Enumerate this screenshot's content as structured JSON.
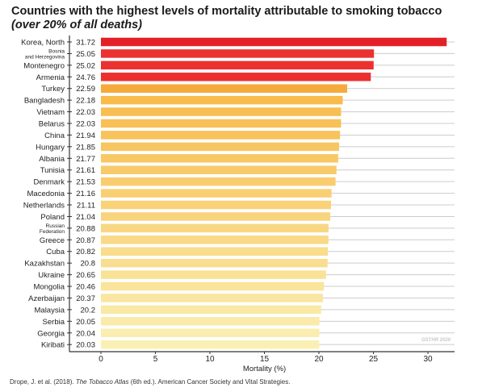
{
  "chart_data": {
    "type": "bar",
    "orientation": "horizontal",
    "title": "Countries with the highest levels of mortality attributable to smoking tobacco",
    "subtitle": "(over 20% of all deaths)",
    "xlabel": "Mortality (%)",
    "ylabel": "",
    "xlim": [
      0,
      32
    ],
    "xticks": [
      0,
      5,
      10,
      15,
      20,
      25,
      30
    ],
    "grid": "horizontal",
    "categories": [
      "Korea, North",
      "Bosnia\nand Herzegovina",
      "Montenegro",
      "Armenia",
      "Turkey",
      "Bangladesh",
      "Vietnam",
      "Belarus",
      "China",
      "Hungary",
      "Albania",
      "Tunisia",
      "Denmark",
      "Macedonia",
      "Netherlands",
      "Poland",
      "Russian\nFederation",
      "Greece",
      "Cuba",
      "Kazakhstan",
      "Ukraine",
      "Mongolia",
      "Azerbaijan",
      "Malaysia",
      "Serbia",
      "Georgia",
      "Kiribati"
    ],
    "values": [
      31.72,
      25.05,
      25.02,
      24.76,
      22.59,
      22.18,
      22.03,
      22.03,
      21.94,
      21.85,
      21.77,
      21.61,
      21.53,
      21.16,
      21.11,
      21.04,
      20.88,
      20.87,
      20.82,
      20.8,
      20.65,
      20.46,
      20.37,
      20.2,
      20.05,
      20.04,
      20.03
    ],
    "value_labels": [
      "31.72",
      "25.05",
      "25.02",
      "24.76",
      "22.59",
      "22.18",
      "22.03",
      "22.03",
      "21.94",
      "21.85",
      "21.77",
      "21.61",
      "21.53",
      "21.16",
      "21.11",
      "21.04",
      "20.88",
      "20.87",
      "20.82",
      "20.8",
      "20.65",
      "20.46",
      "20.37",
      "20.2",
      "20.05",
      "20.04",
      "20.03"
    ],
    "colors": {
      "top": "#e32028",
      "red": "#ec3030",
      "orange": "#f6aa3c",
      "gradient_start": "#f8bb4c",
      "gradient_end": "#faf0b4",
      "grid": "#cccccc",
      "axis": "#333333"
    },
    "watermark": "GSTHR 2020"
  },
  "source": {
    "before": "Drope, J. et al. (2018). ",
    "italic": "The Tobacco Atlas",
    "after": " (6th ed.). American Cancer Society and Vital Strategies."
  }
}
